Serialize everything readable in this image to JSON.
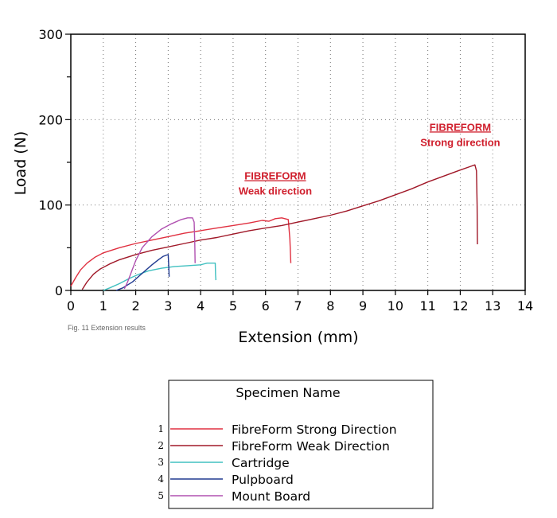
{
  "chart_data": {
    "type": "line",
    "title": "",
    "xlabel": "Extension (mm)",
    "ylabel": "Load (N)",
    "xlim": [
      0,
      14
    ],
    "ylim": [
      0,
      300
    ],
    "x_ticks": [
      0,
      1,
      2,
      3,
      4,
      5,
      6,
      7,
      8,
      9,
      10,
      11,
      12,
      13,
      14
    ],
    "y_ticks": [
      0,
      100,
      200,
      300
    ],
    "grid": "dotted",
    "caption": "Fig. 11 Extension results",
    "annotations": [
      {
        "title": "FIBREFORM",
        "subtitle": "Weak direction",
        "x": 6.3,
        "y": 130
      },
      {
        "title": "FIBREFORM",
        "subtitle": "Strong direction",
        "x": 12.0,
        "y": 187
      }
    ],
    "legend": {
      "title": "Specimen Name",
      "placement": "below"
    },
    "series": [
      {
        "number": "1",
        "name": "FibreForm Strong Direction",
        "color": "#e03040",
        "points": [
          [
            0,
            5
          ],
          [
            0.15,
            15
          ],
          [
            0.3,
            24
          ],
          [
            0.5,
            32
          ],
          [
            0.75,
            39
          ],
          [
            1.0,
            44
          ],
          [
            1.5,
            50
          ],
          [
            2,
            55
          ],
          [
            2.5,
            59
          ],
          [
            3,
            63
          ],
          [
            3.5,
            67
          ],
          [
            4,
            70
          ],
          [
            4.5,
            73
          ],
          [
            5,
            76
          ],
          [
            5.5,
            79
          ],
          [
            5.9,
            82
          ],
          [
            6.1,
            81
          ],
          [
            6.3,
            84
          ],
          [
            6.5,
            85
          ],
          [
            6.7,
            83
          ],
          [
            6.75,
            60
          ],
          [
            6.78,
            32
          ]
        ]
      },
      {
        "number": "2",
        "name": "FibreForm Weak Direction",
        "color": "#a01828",
        "points": [
          [
            0.35,
            1
          ],
          [
            0.5,
            10
          ],
          [
            0.7,
            19
          ],
          [
            0.9,
            25
          ],
          [
            1.2,
            31
          ],
          [
            1.5,
            36
          ],
          [
            2,
            42
          ],
          [
            2.5,
            47
          ],
          [
            3,
            51
          ],
          [
            3.5,
            55
          ],
          [
            4,
            59
          ],
          [
            4.5,
            62
          ],
          [
            5,
            66
          ],
          [
            5.5,
            70
          ],
          [
            6,
            73
          ],
          [
            6.5,
            76
          ],
          [
            7,
            80
          ],
          [
            7.5,
            84
          ],
          [
            8,
            88
          ],
          [
            8.5,
            93
          ],
          [
            9,
            99
          ],
          [
            9.5,
            105
          ],
          [
            10,
            112
          ],
          [
            10.5,
            119
          ],
          [
            11,
            127
          ],
          [
            11.5,
            134
          ],
          [
            12,
            141
          ],
          [
            12.3,
            145
          ],
          [
            12.45,
            147
          ],
          [
            12.5,
            140
          ],
          [
            12.52,
            100
          ],
          [
            12.53,
            54
          ]
        ]
      },
      {
        "number": "3",
        "name": "Cartridge",
        "color": "#40c0c0",
        "points": [
          [
            1.0,
            0
          ],
          [
            1.2,
            3
          ],
          [
            1.5,
            8
          ],
          [
            1.8,
            14
          ],
          [
            2.1,
            19
          ],
          [
            2.4,
            23
          ],
          [
            2.8,
            26
          ],
          [
            3.2,
            28
          ],
          [
            3.6,
            29
          ],
          [
            4.0,
            30
          ],
          [
            4.2,
            32
          ],
          [
            4.45,
            32
          ],
          [
            4.46,
            18
          ],
          [
            4.47,
            12
          ]
        ]
      },
      {
        "number": "4",
        "name": "Pulpboard",
        "color": "#203a90",
        "points": [
          [
            1.4,
            0
          ],
          [
            1.6,
            3
          ],
          [
            1.9,
            10
          ],
          [
            2.2,
            20
          ],
          [
            2.5,
            30
          ],
          [
            2.7,
            36
          ],
          [
            2.85,
            40
          ],
          [
            3.0,
            42
          ],
          [
            3.02,
            25
          ],
          [
            3.03,
            16
          ]
        ]
      },
      {
        "number": "5",
        "name": "Mount Board",
        "color": "#b050b0",
        "points": [
          [
            1.65,
            2
          ],
          [
            1.75,
            10
          ],
          [
            1.85,
            20
          ],
          [
            2.0,
            35
          ],
          [
            2.2,
            50
          ],
          [
            2.5,
            63
          ],
          [
            2.8,
            72
          ],
          [
            3.1,
            78
          ],
          [
            3.4,
            83
          ],
          [
            3.6,
            85
          ],
          [
            3.75,
            85
          ],
          [
            3.8,
            80
          ],
          [
            3.82,
            55
          ],
          [
            3.83,
            32
          ]
        ]
      }
    ]
  }
}
